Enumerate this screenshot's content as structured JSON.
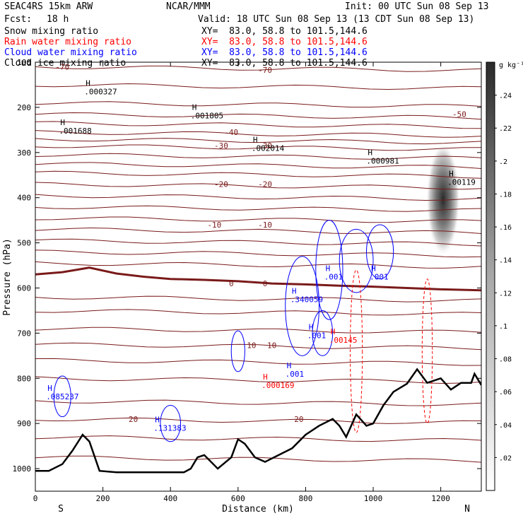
{
  "header": {
    "model": "SEAC4RS 15km ARW",
    "institution": "NCAR/MMM",
    "init": "Init: 00 UTC Sun 08 Sep 13",
    "fcst_label": "Fcst:",
    "fcst_value": "18 h",
    "valid": "Valid: 18 UTC Sun 08 Sep 13 (13 CDT Sun 08 Sep 13)",
    "fields": [
      {
        "label": "Snow mixing ratio",
        "xy": "XY=  83.0, 58.8 to 101.5,144.6",
        "color": "#000000"
      },
      {
        "label": "Rain water mixing ratio",
        "xy": "XY=  83.0, 58.8 to 101.5,144.6",
        "color": "#ff0000"
      },
      {
        "label": "Cloud water mixing ratio",
        "xy": "XY=  83.0, 58.8 to 101.5,144.6",
        "color": "#0000ff"
      },
      {
        "label": "Cloud ice mixing ratio",
        "xy": "XY=  83.0, 58.8 to 101.5,144.6",
        "color": "#000000"
      }
    ]
  },
  "chart_data": {
    "type": "contour",
    "ylabel": "Pressure (hPa)",
    "xlabel": "Distance (km)",
    "xlim": [
      0,
      1320
    ],
    "ylim": [
      1050,
      100
    ],
    "x_ticks": [
      0,
      200,
      400,
      600,
      800,
      1000,
      1200
    ],
    "y_ticks": [
      200,
      300,
      400,
      500,
      600,
      700,
      800,
      900,
      1000
    ],
    "y_ticks_topclipped": [
      "100"
    ],
    "left_end_label": "S",
    "right_end_label": "N",
    "colors": {
      "temperature": "#7a1a1a",
      "freezing": "#7a1a1a",
      "cloud_water": "#0000ff",
      "rain": "#ff0000",
      "terrain": "#000000"
    },
    "colorbar": {
      "unit": "g kg⁻¹",
      "range": [
        0,
        0.26
      ],
      "ticks": [
        ".02",
        ".04",
        ".06",
        ".08",
        ".1",
        ".12",
        ".14",
        ".16",
        ".18",
        ".2",
        ".22",
        ".24"
      ]
    },
    "temperature_labels": [
      {
        "text": "-70",
        "x": 80,
        "p": 110
      },
      {
        "text": "-70",
        "x": 680,
        "p": 117
      },
      {
        "text": "-50",
        "x": 1255,
        "p": 215
      },
      {
        "text": "-40",
        "x": 580,
        "p": 255
      },
      {
        "text": "-30",
        "x": 550,
        "p": 285
      },
      {
        "text": "-30",
        "x": 680,
        "p": 285
      },
      {
        "text": "-20",
        "x": 550,
        "p": 370
      },
      {
        "text": "-20",
        "x": 680,
        "p": 370
      },
      {
        "text": "-10",
        "x": 530,
        "p": 460
      },
      {
        "text": "-10",
        "x": 680,
        "p": 460
      },
      {
        "text": "0",
        "x": 580,
        "p": 590
      },
      {
        "text": "0",
        "x": 680,
        "p": 590
      },
      {
        "text": "10",
        "x": 640,
        "p": 727
      },
      {
        "text": "10",
        "x": 700,
        "p": 727
      },
      {
        "text": "20",
        "x": 290,
        "p": 890
      },
      {
        "text": "20",
        "x": 780,
        "p": 890
      }
    ],
    "maxima_labels": [
      {
        "text": ".000327",
        "x": 195,
        "p": 165,
        "color": "#000000"
      },
      {
        "text": ".001805",
        "x": 510,
        "p": 218,
        "color": "#000000"
      },
      {
        "text": ".001688",
        "x": 120,
        "p": 252,
        "color": "#000000"
      },
      {
        "text": ".002014",
        "x": 690,
        "p": 290,
        "color": "#000000"
      },
      {
        "text": ".000981",
        "x": 1030,
        "p": 318,
        "color": "#000000"
      },
      {
        "text": ".00119",
        "x": 1270,
        "p": 365,
        "color": "#000000"
      },
      {
        "text": ".001",
        "x": 905,
        "p": 575,
        "color": "#0000ff"
      },
      {
        "text": ".001",
        "x": 1040,
        "p": 575,
        "color": "#0000ff"
      },
      {
        "text": ".340059",
        "x": 805,
        "p": 625,
        "color": "#0000ff"
      },
      {
        "text": ".001",
        "x": 855,
        "p": 705,
        "color": "#0000ff"
      },
      {
        "text": ".00145",
        "x": 920,
        "p": 715,
        "color": "#ff0000"
      },
      {
        "text": ".001",
        "x": 790,
        "p": 790,
        "color": "#0000ff"
      },
      {
        "text": ".000169",
        "x": 720,
        "p": 815,
        "color": "#ff0000"
      },
      {
        "text": ".085237",
        "x": 82,
        "p": 840,
        "color": "#0000ff"
      },
      {
        "text": ".131383",
        "x": 400,
        "p": 910,
        "color": "#0000ff"
      }
    ],
    "terrain_pressure_profile": [
      [
        0,
        1005
      ],
      [
        40,
        1005
      ],
      [
        80,
        990
      ],
      [
        110,
        960
      ],
      [
        140,
        925
      ],
      [
        160,
        940
      ],
      [
        190,
        1005
      ],
      [
        240,
        1008
      ],
      [
        300,
        1008
      ],
      [
        380,
        1008
      ],
      [
        440,
        1008
      ],
      [
        460,
        1000
      ],
      [
        480,
        975
      ],
      [
        500,
        970
      ],
      [
        520,
        985
      ],
      [
        540,
        1000
      ],
      [
        580,
        975
      ],
      [
        600,
        935
      ],
      [
        620,
        945
      ],
      [
        650,
        975
      ],
      [
        680,
        985
      ],
      [
        720,
        970
      ],
      [
        760,
        955
      ],
      [
        800,
        925
      ],
      [
        840,
        905
      ],
      [
        880,
        890
      ],
      [
        900,
        905
      ],
      [
        920,
        930
      ],
      [
        950,
        880
      ],
      [
        980,
        905
      ],
      [
        1000,
        900
      ],
      [
        1030,
        860
      ],
      [
        1060,
        830
      ],
      [
        1100,
        812
      ],
      [
        1130,
        780
      ],
      [
        1160,
        810
      ],
      [
        1200,
        800
      ],
      [
        1230,
        825
      ],
      [
        1260,
        810
      ],
      [
        1290,
        810
      ],
      [
        1300,
        790
      ],
      [
        1320,
        815
      ]
    ],
    "zero_isotherm_profile": [
      [
        0,
        570
      ],
      [
        80,
        565
      ],
      [
        160,
        555
      ],
      [
        240,
        568
      ],
      [
        320,
        575
      ],
      [
        400,
        580
      ],
      [
        500,
        582
      ],
      [
        600,
        585
      ],
      [
        700,
        590
      ],
      [
        800,
        592
      ],
      [
        900,
        595
      ],
      [
        1000,
        597
      ],
      [
        1100,
        600
      ],
      [
        1200,
        603
      ],
      [
        1320,
        605
      ]
    ]
  }
}
